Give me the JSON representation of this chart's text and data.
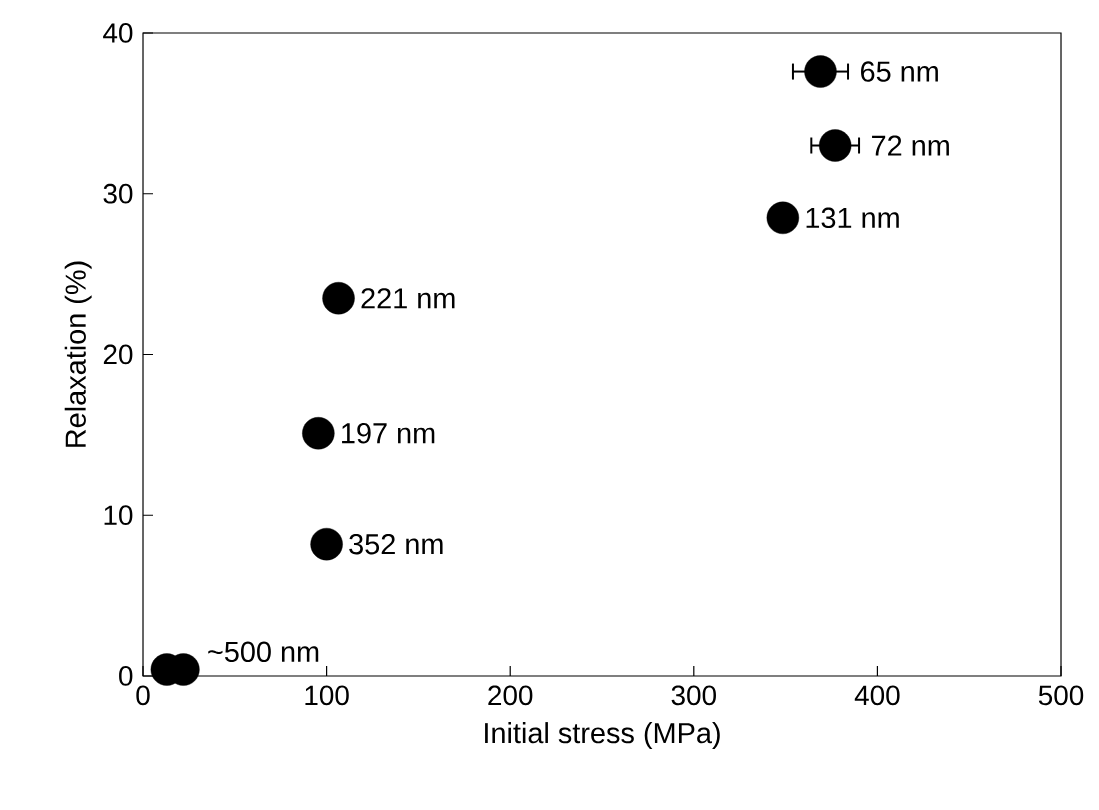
{
  "chart_data": {
    "type": "scatter",
    "xlabel": "Initial stress (MPa)",
    "ylabel": "Relaxation (%)",
    "x": [
      369,
      377,
      348.5,
      106.5,
      95.5,
      100,
      13,
      22
    ],
    "values": [
      37.6,
      33.0,
      28.5,
      23.5,
      15.1,
      8.2,
      0.4,
      0.4
    ],
    "xerrors": [
      15,
      13,
      null,
      null,
      null,
      null,
      null,
      null
    ],
    "color": "#000000",
    "marker": "circle",
    "xlim": [
      0,
      500
    ],
    "ylim": [
      0,
      40
    ],
    "xticks": [
      0,
      100,
      200,
      300,
      400,
      500
    ],
    "yticks": [
      0,
      10,
      20,
      30,
      40
    ],
    "annotations": [
      {
        "text": "65 nm",
        "x": 369,
        "y": 37.6
      },
      {
        "text": "72 nm",
        "x": 377,
        "y": 33.0
      },
      {
        "text": "131 nm",
        "x": 348.5,
        "y": 28.5
      },
      {
        "text": "221 nm",
        "x": 106.5,
        "y": 23.5
      },
      {
        "text": "197 nm",
        "x": 95.5,
        "y": 15.1
      },
      {
        "text": "352 nm",
        "x": 100,
        "y": 8.2
      },
      {
        "text": "~500 nm",
        "x": 22,
        "y": 0.4
      }
    ]
  }
}
